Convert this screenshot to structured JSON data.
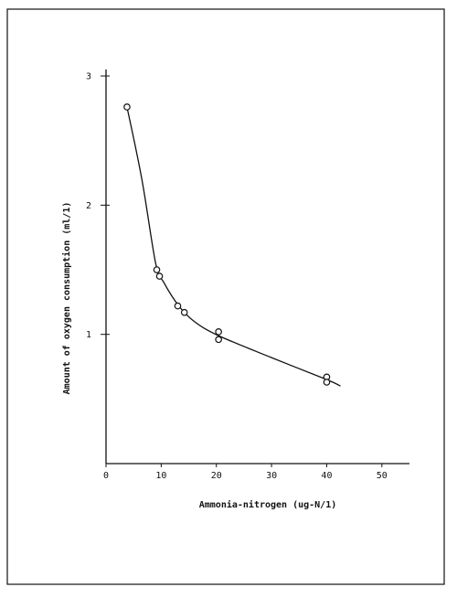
{
  "chart_data": {
    "type": "scatter",
    "title": "",
    "xlabel": "Ammonia-nitrogen (ug-N/1)",
    "ylabel": "Amount of oxygen consumption (ml/1)",
    "xlim": [
      0,
      55
    ],
    "ylim": [
      0,
      3.05
    ],
    "x_ticks": [
      0,
      10,
      20,
      30,
      40,
      50
    ],
    "x_tick_labels": [
      "0",
      "10",
      "20",
      "30",
      "40",
      "50"
    ],
    "y_ticks": [
      1,
      2,
      3
    ],
    "y_tick_labels": [
      "1",
      "2",
      "3"
    ],
    "grid": false,
    "series": [
      {
        "points": [
          {
            "x": 3.8,
            "y": 2.76
          },
          {
            "x": 9.2,
            "y": 1.5
          },
          {
            "x": 9.7,
            "y": 1.45
          },
          {
            "x": 13.0,
            "y": 1.22
          },
          {
            "x": 14.2,
            "y": 1.17
          },
          {
            "x": 20.4,
            "y": 1.02
          },
          {
            "x": 20.4,
            "y": 0.96
          },
          {
            "x": 40.0,
            "y": 0.67
          },
          {
            "x": 40.0,
            "y": 0.63
          }
        ],
        "trend_line": [
          {
            "x": 3.8,
            "y": 2.76
          },
          {
            "x": 6.5,
            "y": 2.2
          },
          {
            "x": 9.0,
            "y": 1.55
          },
          {
            "x": 10.5,
            "y": 1.4
          },
          {
            "x": 13.2,
            "y": 1.22
          },
          {
            "x": 16.0,
            "y": 1.1
          },
          {
            "x": 20.4,
            "y": 0.99
          },
          {
            "x": 30.0,
            "y": 0.82
          },
          {
            "x": 40.0,
            "y": 0.65
          },
          {
            "x": 42.5,
            "y": 0.6
          }
        ]
      }
    ]
  }
}
